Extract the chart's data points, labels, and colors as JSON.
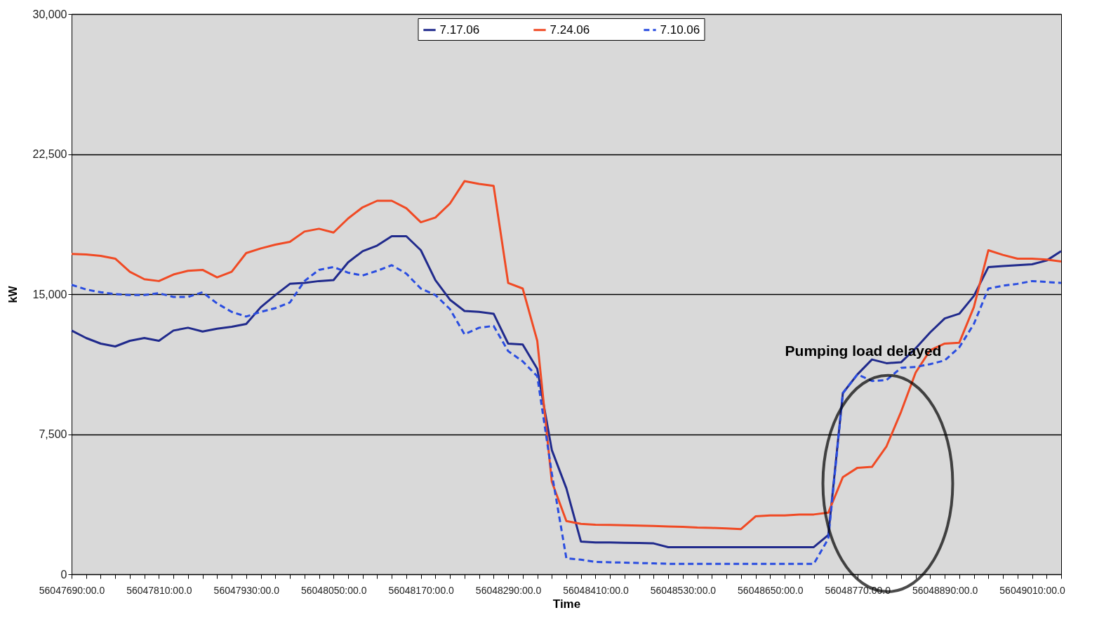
{
  "chart_data": {
    "type": "line",
    "xlabel": "Time",
    "ylabel": "kW",
    "categories": [
      "56047690:00.0",
      null,
      null,
      null,
      null,
      null,
      "56047810:00.0",
      null,
      null,
      null,
      null,
      null,
      "56047930:00.0",
      null,
      null,
      null,
      null,
      null,
      "56048050:00.0",
      null,
      null,
      null,
      null,
      null,
      "56048170:00.0",
      null,
      null,
      null,
      null,
      null,
      "56048290:00.0",
      null,
      null,
      null,
      null,
      null,
      "56048410:00.0",
      null,
      null,
      null,
      null,
      null,
      "56048530:00.0",
      null,
      null,
      null,
      null,
      null,
      "56048650:00.0",
      null,
      null,
      null,
      null,
      null,
      "56048770:00.0",
      null,
      null,
      null,
      null,
      null,
      "56048890:00.0",
      null,
      null,
      null,
      null,
      null,
      "56049010:00.0",
      null,
      null
    ],
    "ylim": [
      0,
      30000
    ],
    "yticks": [
      {
        "value": 0,
        "label": "0"
      },
      {
        "value": 7500,
        "label": "7,500"
      },
      {
        "value": 15000,
        "label": "15,000"
      },
      {
        "value": 22500,
        "label": "22,500"
      },
      {
        "value": 30000,
        "label": "30,000"
      }
    ],
    "grid": "y",
    "legend": "top",
    "marker": "none",
    "series": [
      {
        "name": "7.17.06",
        "color": "#202a8c",
        "line_style": "solid",
        "values": [
          13050,
          12650,
          12350,
          12200,
          12500,
          12650,
          12500,
          13050,
          13200,
          13000,
          13150,
          13250,
          13400,
          14300,
          14950,
          15550,
          15600,
          15700,
          15750,
          16700,
          17300,
          17600,
          18100,
          18100,
          17350,
          15750,
          14700,
          14100,
          14050,
          13950,
          12350,
          12300,
          11000,
          6650,
          4600,
          1750,
          1700,
          1700,
          1680,
          1670,
          1650,
          1450,
          1450,
          1450,
          1450,
          1450,
          1450,
          1450,
          1450,
          1450,
          1450,
          1450,
          2100,
          9700,
          10700,
          11500,
          11300,
          11350,
          12100,
          12950,
          13700,
          13950,
          14900,
          16450,
          16500,
          16550,
          16600,
          16800,
          17300
        ]
      },
      {
        "name": "7.24.06",
        "color": "#f04a24",
        "line_style": "solid",
        "values": [
          17150,
          17120,
          17050,
          16900,
          16200,
          15800,
          15700,
          16050,
          16250,
          16300,
          15900,
          16200,
          17200,
          17450,
          17650,
          17800,
          18350,
          18500,
          18300,
          19050,
          19650,
          20000,
          20000,
          19600,
          18850,
          19100,
          19850,
          21050,
          20900,
          20800,
          15600,
          15300,
          12500,
          4950,
          2850,
          2700,
          2650,
          2640,
          2620,
          2600,
          2580,
          2560,
          2540,
          2500,
          2480,
          2450,
          2420,
          3100,
          3150,
          3150,
          3200,
          3200,
          3300,
          5200,
          5700,
          5750,
          6850,
          8700,
          10800,
          12000,
          12350,
          12400,
          14300,
          17350,
          17100,
          16900,
          16900,
          16850,
          16750
        ]
      },
      {
        "name": "7.10.06",
        "color": "#2a4de0",
        "line_style": "dashed",
        "values": [
          15500,
          15250,
          15100,
          15000,
          14950,
          14950,
          15050,
          14850,
          14850,
          15100,
          14500,
          14050,
          13800,
          14050,
          14250,
          14550,
          15700,
          16300,
          16450,
          16150,
          16000,
          16250,
          16550,
          16100,
          15300,
          14950,
          14200,
          12850,
          13200,
          13300,
          11950,
          11400,
          10600,
          5400,
          850,
          780,
          660,
          640,
          620,
          600,
          580,
          560,
          550,
          550,
          550,
          550,
          550,
          550,
          550,
          550,
          550,
          550,
          1900,
          9700,
          10700,
          10350,
          10400,
          11050,
          11100,
          11250,
          11450,
          12150,
          13400,
          15300,
          15450,
          15550,
          15700,
          15650,
          15600
        ]
      }
    ],
    "annotations": [
      {
        "text": "Pumping load delayed",
        "y": 11250
      }
    ]
  }
}
